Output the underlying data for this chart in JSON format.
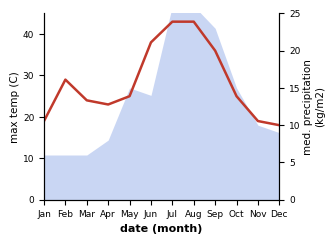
{
  "months": [
    "Jan",
    "Feb",
    "Mar",
    "Apr",
    "May",
    "Jun",
    "Jul",
    "Aug",
    "Sep",
    "Oct",
    "Nov",
    "Dec"
  ],
  "temperature": [
    19,
    29,
    24,
    23,
    25,
    38,
    43,
    43,
    36,
    25,
    19,
    18
  ],
  "precipitation_kg": [
    6,
    6,
    6,
    8,
    15,
    14,
    26,
    26,
    23,
    15,
    10,
    9
  ],
  "temp_color": "#c0392b",
  "precip_color": "#b8c9f0",
  "precip_fill_alpha": 0.75,
  "xlabel": "date (month)",
  "ylabel_left": "max temp (C)",
  "ylabel_right": "med. precipitation\n(kg/m2)",
  "ylim_left": [
    0,
    45
  ],
  "ylim_right": [
    0,
    25
  ],
  "yticks_left": [
    0,
    10,
    20,
    30,
    40
  ],
  "yticks_right": [
    0,
    5,
    10,
    15,
    20,
    25
  ],
  "background_color": "#ffffff",
  "label_fontsize": 7.5,
  "tick_fontsize": 6.5,
  "xlabel_fontsize": 8,
  "linewidth": 1.8
}
